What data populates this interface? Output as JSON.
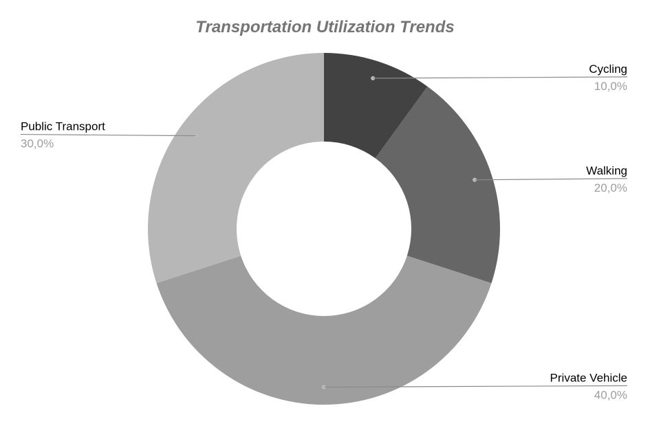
{
  "chart_data": {
    "type": "pie",
    "title": "Transportation Utilization Trends",
    "donut": true,
    "slices": [
      {
        "label": "Cycling",
        "value": 10.0,
        "display": "10,0%",
        "color": "#424242",
        "label_side": "right"
      },
      {
        "label": "Walking",
        "value": 20.0,
        "display": "20,0%",
        "color": "#666666",
        "label_side": "right"
      },
      {
        "label": "Private Vehicle",
        "value": 40.0,
        "display": "40,0%",
        "color": "#9e9e9e",
        "label_side": "right"
      },
      {
        "label": "Public Transport",
        "value": 30.0,
        "display": "30,0%",
        "color": "#b7b7b7",
        "label_side": "left"
      }
    ]
  }
}
